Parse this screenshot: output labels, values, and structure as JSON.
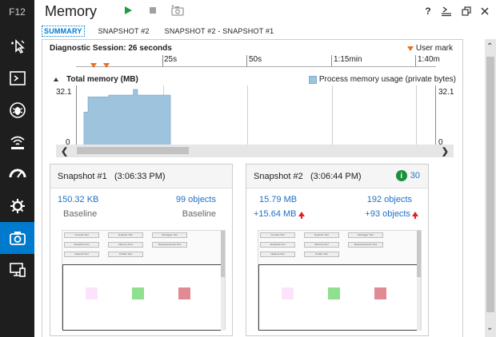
{
  "rail": {
    "top_label": "F12",
    "items": [
      {
        "name": "dom-explorer-icon"
      },
      {
        "name": "console-icon"
      },
      {
        "name": "debugger-icon"
      },
      {
        "name": "network-icon"
      },
      {
        "name": "performance-icon"
      },
      {
        "name": "ui-responsiveness-icon"
      },
      {
        "name": "memory-icon",
        "active": true
      },
      {
        "name": "emulation-icon"
      }
    ]
  },
  "header": {
    "title": "Memory",
    "help": "?"
  },
  "tabs": [
    "SUMMARY",
    "SNAPSHOT #2",
    "SNAPSHOT #2 - SNAPSHOT #1"
  ],
  "session": {
    "label": "Diagnostic Session: 26 seconds",
    "user_mark": "User mark"
  },
  "ruler": {
    "labels": [
      "25s",
      "50s",
      "1:15min",
      "1:40m"
    ]
  },
  "memory_chart": {
    "title": "Total memory (MB)",
    "legend": "Process memory usage (private bytes)",
    "y_max": "32.1",
    "y_min": "0"
  },
  "chart_data": {
    "type": "area",
    "title": "Total memory (MB)",
    "series": [
      {
        "name": "Process memory usage (private bytes)",
        "values": [
          18,
          26,
          26,
          26,
          26,
          26,
          27,
          27,
          27,
          27,
          27,
          27,
          30,
          27,
          27,
          27,
          27,
          27,
          27,
          27,
          27,
          27
        ]
      }
    ],
    "ylim": [
      0,
      32.1
    ],
    "xlabel": "",
    "ylabel": ""
  },
  "snapshots": [
    {
      "name": "Snapshot #1",
      "time": "(3:06:33 PM)",
      "size": "150.32 KB",
      "objects": "99 objects",
      "size_diff": "Baseline",
      "objects_diff": "Baseline",
      "issues": ""
    },
    {
      "name": "Snapshot #2",
      "time": "(3:06:44 PM)",
      "size": "15.79 MB",
      "objects": "192 objects",
      "size_diff": "+15.64 MB",
      "objects_diff": "+93 objects",
      "issues": "30"
    }
  ],
  "thumb_buttons": [
    "Console Tool",
    "Explorer Tool",
    "Debugger Tool",
    "Snapshot Tool",
    "Memory Tool",
    "Responsiveness Tool",
    "Network Tool",
    "Profiler Tool"
  ],
  "colors": {
    "accent": "#007acc",
    "area_fill": "#9ec3dc",
    "mark": "#e8701e",
    "increase": "#e02020",
    "info_green": "#1a8f3c"
  }
}
